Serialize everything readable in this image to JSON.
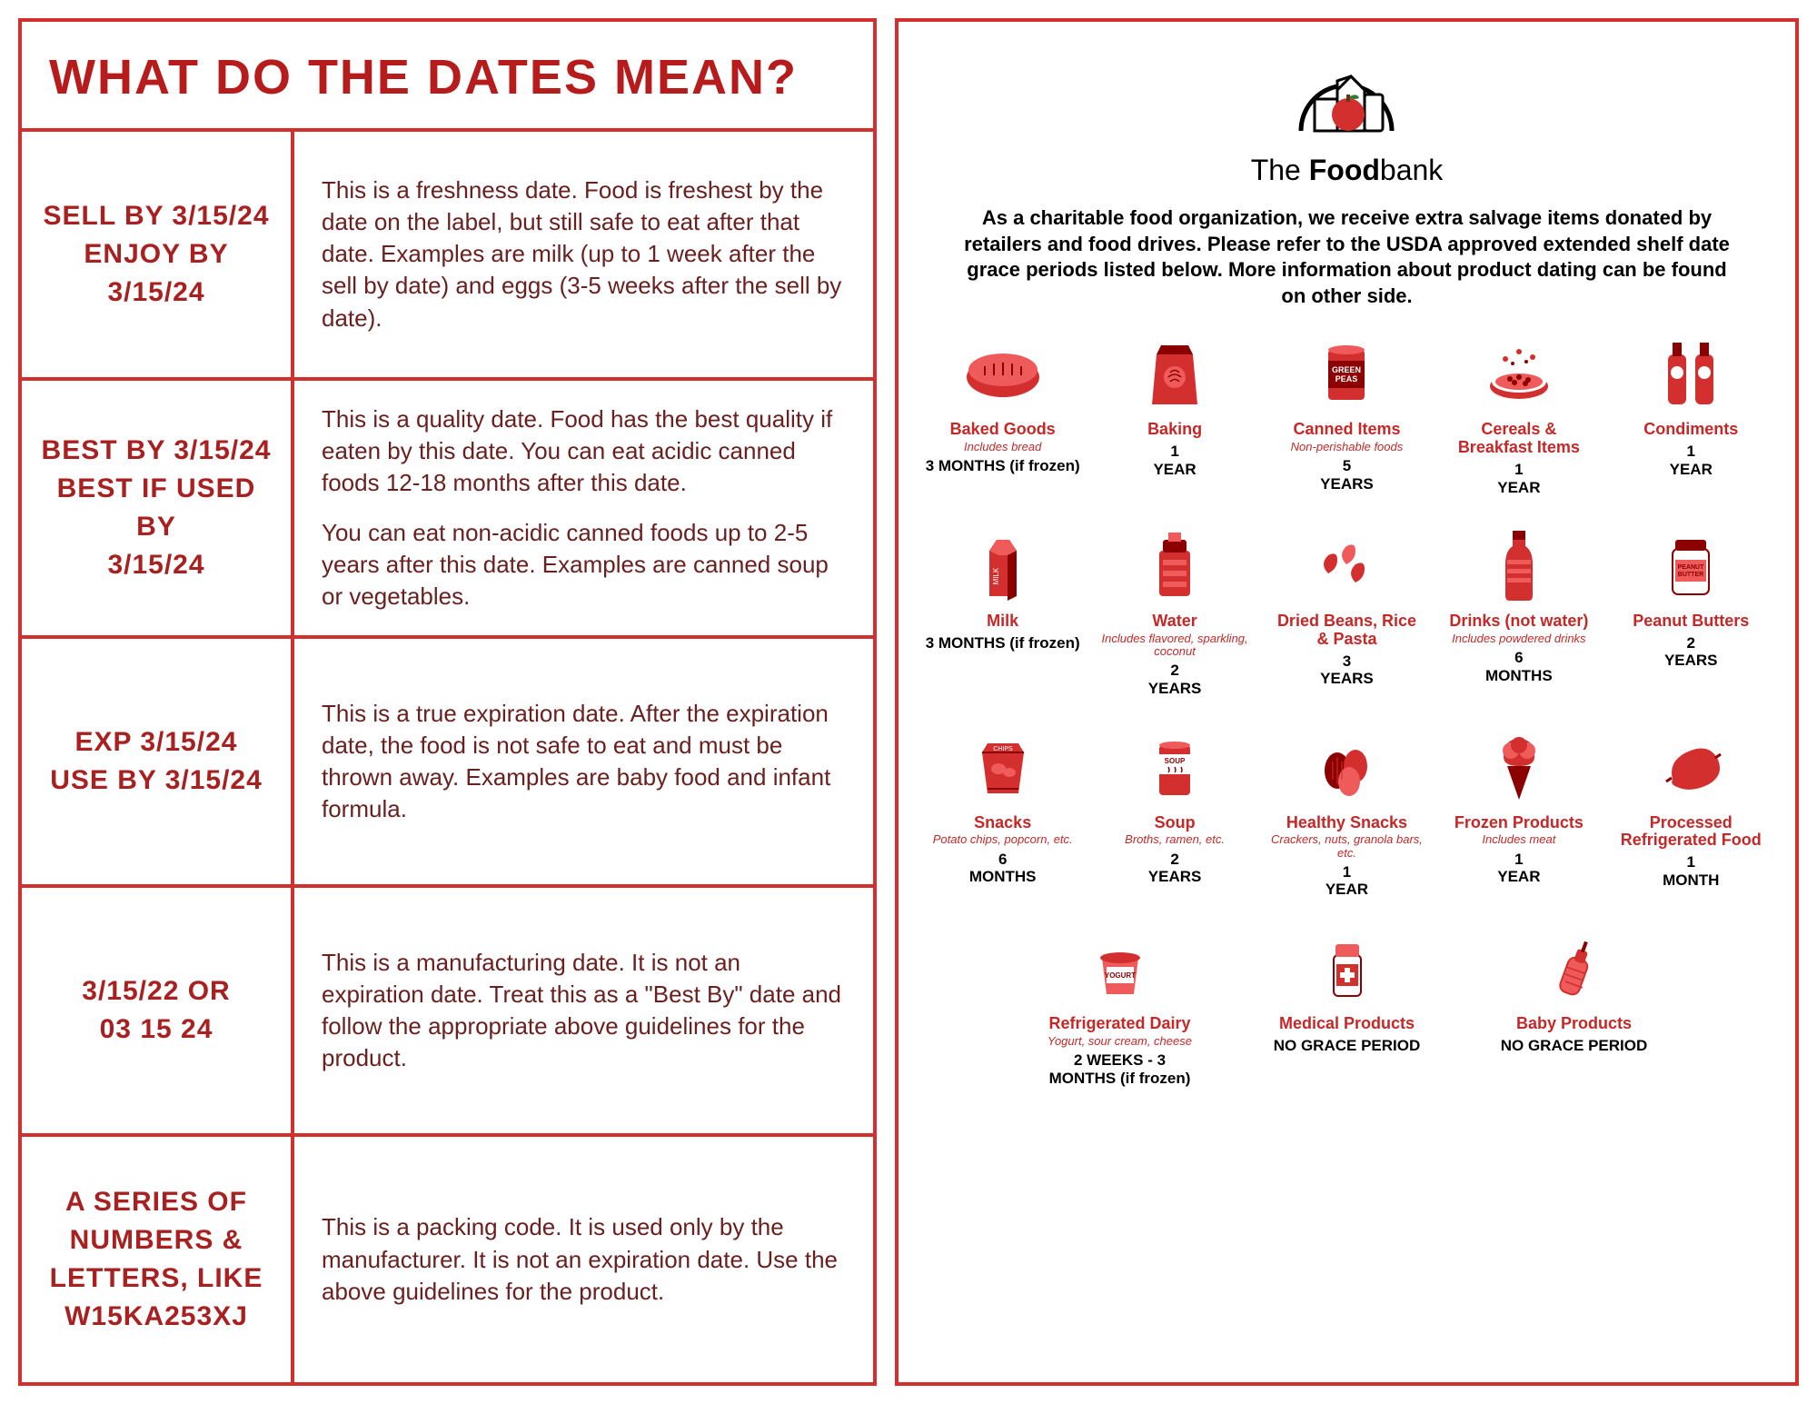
{
  "colors": {
    "border": "#d32f2f",
    "heading": "#b71c1c",
    "label": "#a82020",
    "desc": "#6b2020",
    "item_title": "#c62828",
    "black": "#000000",
    "icon_fill": "#d32f2f",
    "icon_dark": "#8b0000",
    "icon_light": "#ef5a5a"
  },
  "left": {
    "title": "WHAT DO THE DATES MEAN?",
    "rows": [
      {
        "labels": [
          "SELL BY 3/15/24",
          "ENJOY BY 3/15/24"
        ],
        "desc": [
          "This is a freshness date. Food is freshest by the date on the label, but still safe to eat after that date. Examples are milk (up to 1 week after the sell by date) and eggs (3-5 weeks after the sell by date)."
        ]
      },
      {
        "labels": [
          "BEST BY 3/15/24",
          "BEST IF USED BY",
          "3/15/24"
        ],
        "desc": [
          "This is a quality date. Food has the best quality if eaten by this date. You can eat acidic canned foods 12-18 months after this date.",
          "You can eat non-acidic canned foods up to 2-5 years after this date. Examples are canned soup or vegetables."
        ]
      },
      {
        "labels": [
          "EXP 3/15/24",
          "USE BY 3/15/24"
        ],
        "desc": [
          "This is a true expiration date. After the expiration date, the food is not safe to eat and must be thrown away. Examples are baby food and infant formula."
        ]
      },
      {
        "labels": [
          "3/15/22 OR",
          "03 15 24"
        ],
        "desc": [
          "This is a manufacturing date. It is not an expiration date. Treat this as a \"Best By\" date and follow the appropriate above guidelines for the product."
        ]
      },
      {
        "labels": [
          "A SERIES OF",
          "NUMBERS &",
          "LETTERS, LIKE",
          "W15KA253XJ"
        ],
        "desc": [
          "This is a packing code. It is used only by the manufacturer. It is not an expiration date. Use the above guidelines for the product."
        ]
      }
    ]
  },
  "right": {
    "logo_text_pre": "The ",
    "logo_text_bold": "Food",
    "logo_text_post": "bank",
    "intro": "As a charitable food organization, we receive extra salvage items donated by retailers and food drives. Please refer to the USDA approved extended shelf date grace periods listed below. More information about product dating can be found on other side.",
    "rows": [
      [
        {
          "icon": "bread",
          "title": "Baked Goods",
          "sub": "Includes bread",
          "period": "3 MONTHS (if frozen)"
        },
        {
          "icon": "flour",
          "title": "Baking",
          "sub": "",
          "period": "1\nYEAR"
        },
        {
          "icon": "can",
          "title": "Canned Items",
          "sub": "Non-perishable foods",
          "period": "5\nYEARS"
        },
        {
          "icon": "cereal",
          "title": "Cereals & Breakfast Items",
          "sub": "",
          "period": "1\nYEAR"
        },
        {
          "icon": "bottles",
          "title": "Condiments",
          "sub": "",
          "period": "1\nYEAR"
        }
      ],
      [
        {
          "icon": "milk",
          "title": "Milk",
          "sub": "",
          "period": "3 MONTHS (if frozen)"
        },
        {
          "icon": "water",
          "title": "Water",
          "sub": "Includes flavored, sparkling, coconut",
          "period": "2\nYEARS"
        },
        {
          "icon": "pasta",
          "title": "Dried Beans, Rice & Pasta",
          "sub": "",
          "period": "3\nYEARS"
        },
        {
          "icon": "bottle",
          "title": "Drinks (not water)",
          "sub": "Includes powdered drinks",
          "period": "6\nMONTHS"
        },
        {
          "icon": "jar",
          "title": "Peanut Butters",
          "sub": "",
          "period": "2\nYEARS"
        }
      ],
      [
        {
          "icon": "chips",
          "title": "Snacks",
          "sub": "Potato chips, popcorn, etc.",
          "period": "6\nMONTHS"
        },
        {
          "icon": "soup",
          "title": "Soup",
          "sub": "Broths, ramen, etc.",
          "period": "2\nYEARS"
        },
        {
          "icon": "nuts",
          "title": "Healthy Snacks",
          "sub": "Crackers, nuts, granola bars, etc.",
          "period": "1\nYEAR"
        },
        {
          "icon": "icecream",
          "title": "Frozen Products",
          "sub": "Includes meat",
          "period": "1\nYEAR"
        },
        {
          "icon": "sausage",
          "title": "Processed Refrigerated Food",
          "sub": "",
          "period": "1\nMONTH"
        }
      ],
      [
        {
          "icon": "yogurt",
          "title": "Refrigerated Dairy",
          "sub": "Yogurt, sour cream, cheese",
          "period": "2 WEEKS - 3 MONTHS (if frozen)"
        },
        {
          "icon": "medicine",
          "title": "Medical Products",
          "sub": "",
          "period": "NO GRACE PERIOD"
        },
        {
          "icon": "baby",
          "title": "Baby Products",
          "sub": "",
          "period": "NO GRACE PERIOD"
        }
      ]
    ]
  }
}
